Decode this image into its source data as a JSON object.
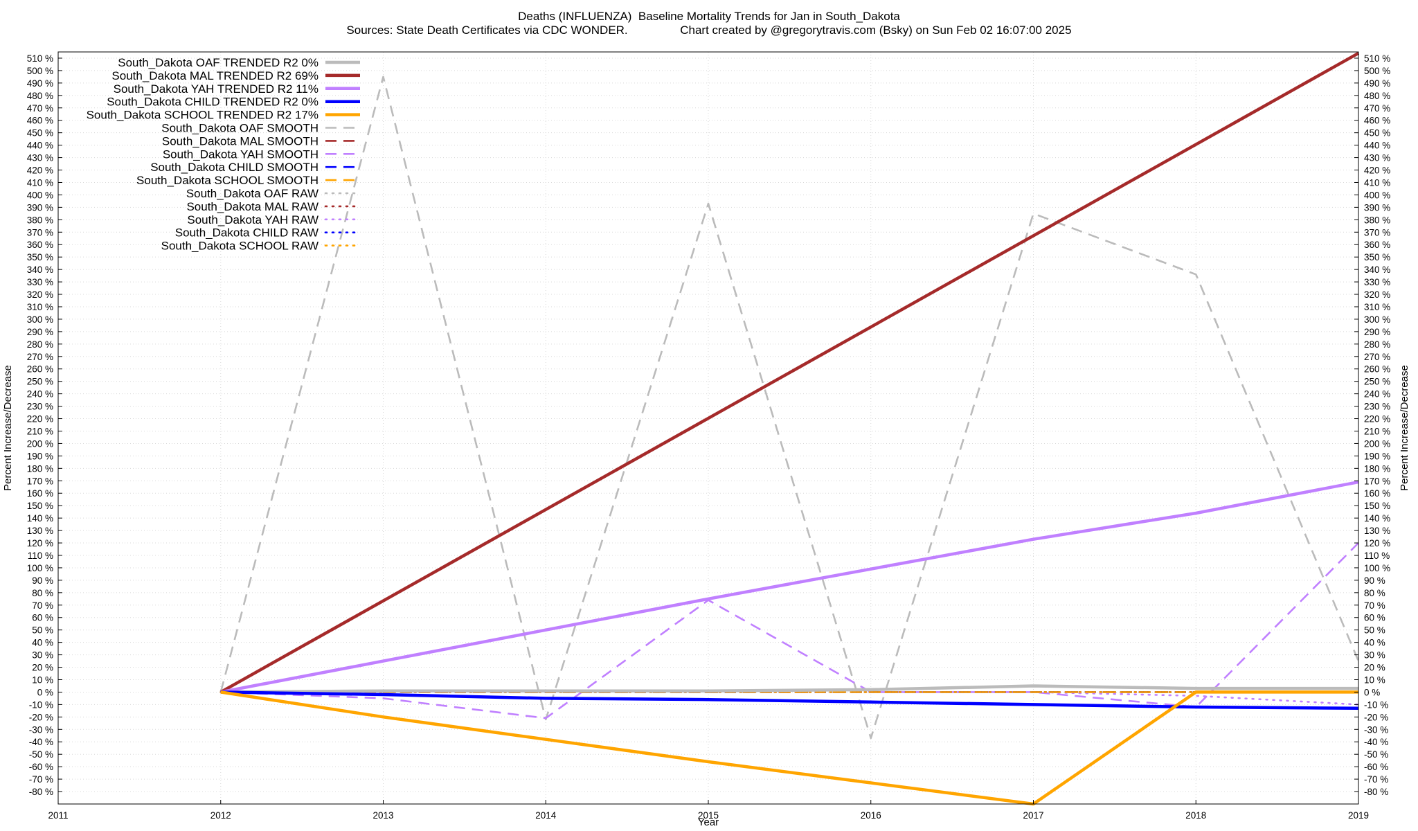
{
  "title_line1": "Deaths (INFLUENZA)  Baseline Mortality Trends for Jan in South_Dakota",
  "title_line2": "Sources: State Death Certificates via CDC WONDER.                Chart created by @gregorytravis.com (Bsky) on Sun Feb 02 16:07:00 2025",
  "chart_data": {
    "type": "line",
    "xlabel": "Year",
    "ylabel": "Percent Increase/Decrease",
    "y2label": "Percent Increase/Decrease",
    "xlim": [
      2011,
      2019
    ],
    "ylim": [
      -90,
      515
    ],
    "y_tick_step": 10,
    "y_tick_min": -80,
    "y_tick_max": 510,
    "y_tick_suffix": " %",
    "x_ticks": [
      2011,
      2012,
      2013,
      2014,
      2015,
      2016,
      2017,
      2018,
      2019
    ],
    "grid": true,
    "legend_position": "top-left",
    "series": [
      {
        "name": "South_Dakota OAF TRENDED R2  0%",
        "style": "solid",
        "color": "#bbbbbb",
        "x": [
          2012,
          2013,
          2014,
          2015,
          2016,
          2017,
          2018,
          2019
        ],
        "y": [
          0,
          1,
          1,
          1,
          2,
          5,
          3,
          3
        ]
      },
      {
        "name": "South_Dakota MAL TRENDED R2  69%",
        "style": "solid",
        "color": "#a52a2a",
        "x": [
          2012,
          2019
        ],
        "y": [
          0,
          514
        ]
      },
      {
        "name": "South_Dakota YAH TRENDED R2  11%",
        "style": "solid",
        "color": "#c080ff",
        "x": [
          2012,
          2013,
          2014,
          2015,
          2016,
          2017,
          2018,
          2019
        ],
        "y": [
          0,
          25,
          50,
          75,
          99,
          123,
          144,
          169
        ]
      },
      {
        "name": "South_Dakota CHILD TRENDED R2  0%",
        "style": "solid",
        "color": "#0000ff",
        "x": [
          2012,
          2013,
          2014,
          2015,
          2016,
          2017,
          2018,
          2019
        ],
        "y": [
          0,
          -2,
          -5,
          -6,
          -8,
          -10,
          -12,
          -13
        ]
      },
      {
        "name": "South_Dakota SCHOOL TRENDED R2  17%",
        "style": "solid",
        "color": "#ffa500",
        "x": [
          2012,
          2013,
          2014,
          2015,
          2016,
          2017,
          2018,
          2019
        ],
        "y": [
          0,
          -20,
          -38,
          -56,
          -73,
          -90,
          0,
          0
        ]
      },
      {
        "name": "South_Dakota OAF SMOOTH",
        "style": "dashed",
        "color": "#bbbbbb",
        "x": [
          2012,
          2013,
          2014,
          2015,
          2016,
          2017,
          2018,
          2019
        ],
        "y": [
          0,
          495,
          -22,
          393,
          -37,
          385,
          336,
          25
        ]
      },
      {
        "name": "South_Dakota MAL SMOOTH",
        "style": "dashed",
        "color": "#a52a2a",
        "x": [
          2012,
          2013,
          2014,
          2015,
          2016,
          2017,
          2018,
          2019
        ],
        "y": [
          0,
          0,
          0,
          0,
          0,
          0,
          0,
          0
        ]
      },
      {
        "name": "South_Dakota YAH SMOOTH",
        "style": "dashed",
        "color": "#c080ff",
        "x": [
          2012,
          2013,
          2014,
          2015,
          2016,
          2017,
          2018,
          2019
        ],
        "y": [
          0,
          -5,
          -21,
          74,
          0,
          0,
          -12,
          120
        ]
      },
      {
        "name": "South_Dakota CHILD SMOOTH",
        "style": "dashed",
        "color": "#0000ff",
        "x": [
          2012,
          2019
        ],
        "y": [
          0,
          0
        ]
      },
      {
        "name": "South_Dakota SCHOOL SMOOTH",
        "style": "dashed",
        "color": "#ffa500",
        "x": [
          2012,
          2019
        ],
        "y": [
          0,
          0
        ]
      },
      {
        "name": "South_Dakota OAF RAW",
        "style": "dotted",
        "color": "#bbbbbb",
        "x": [
          2012,
          2019
        ],
        "y": [
          0,
          0
        ]
      },
      {
        "name": "South_Dakota MAL RAW",
        "style": "dotted",
        "color": "#a52a2a",
        "x": [
          2012,
          2019
        ],
        "y": [
          0,
          0
        ]
      },
      {
        "name": "South_Dakota YAH RAW",
        "style": "dotted",
        "color": "#c080ff",
        "x": [
          2012,
          2017,
          2018,
          2019
        ],
        "y": [
          0,
          0,
          -3,
          -10
        ]
      },
      {
        "name": "South_Dakota CHILD RAW",
        "style": "dotted",
        "color": "#0000ff",
        "x": [
          2012,
          2019
        ],
        "y": [
          0,
          0
        ]
      },
      {
        "name": "South_Dakota SCHOOL RAW",
        "style": "dotted",
        "color": "#ffa500",
        "x": [
          2012,
          2019
        ],
        "y": [
          0,
          0
        ]
      }
    ]
  }
}
